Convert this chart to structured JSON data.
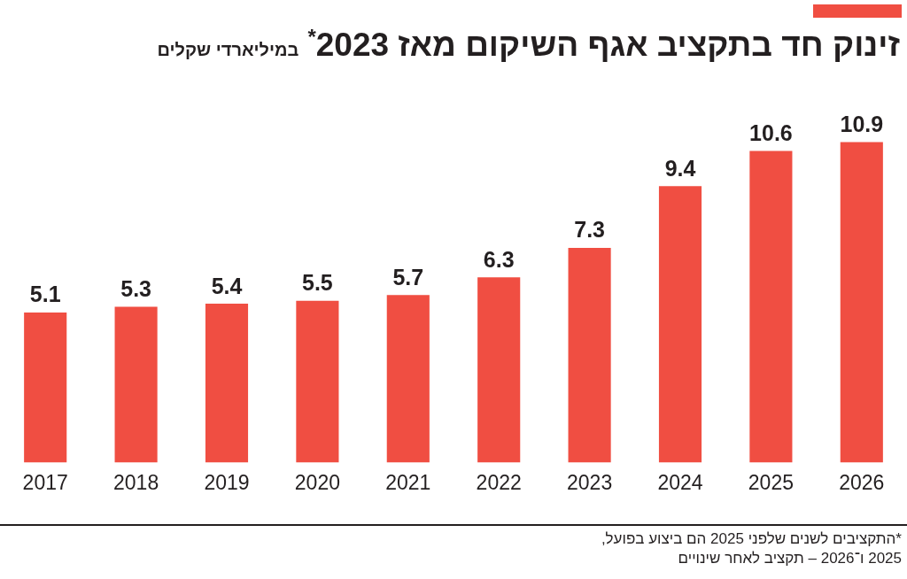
{
  "chart_data": {
    "type": "bar",
    "title": "זינוק חד בתקציב אגף השיקום מאז 2023$^{*}$",
    "subtitle": "במיליארדי שקלים",
    "categories": [
      "2017",
      "2018",
      "2019",
      "2020",
      "2021",
      "2022",
      "2023",
      "2024",
      "2025",
      "2026"
    ],
    "values": [
      5.1,
      5.3,
      5.4,
      5.5,
      5.7,
      6.3,
      7.3,
      9.4,
      10.6,
      10.9
    ],
    "color": "#f04e42",
    "data_labels": true,
    "grid": false,
    "legend": false,
    "annotations": [
      "*התקציבים לשנים שלפני 2025 הם ביצוע בפועל,",
      "2025 ו־2026 – תקציב לאחר שינויים"
    ]
  }
}
